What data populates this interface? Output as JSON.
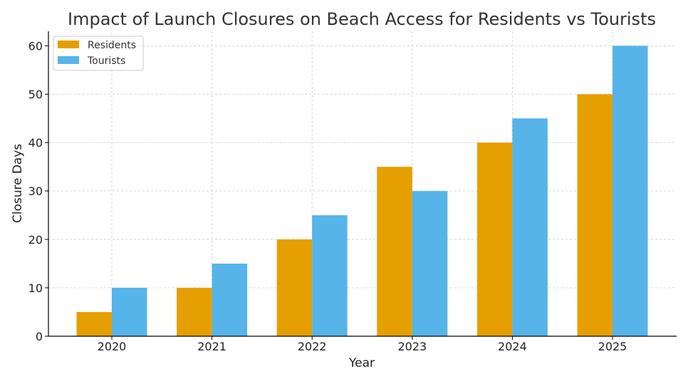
{
  "chart_data": {
    "type": "bar",
    "title": "Impact of Launch Closures on Beach Access for Residents vs Tourists",
    "xlabel": "Year",
    "ylabel": "Closure Days",
    "categories": [
      "2020",
      "2021",
      "2022",
      "2023",
      "2024",
      "2025"
    ],
    "series": [
      {
        "name": "Residents",
        "color": "#E69F00",
        "values": [
          5,
          10,
          20,
          35,
          40,
          50
        ]
      },
      {
        "name": "Tourists",
        "color": "#56B4E9",
        "values": [
          10,
          15,
          25,
          30,
          45,
          60
        ]
      }
    ],
    "ylim": [
      0,
      63
    ],
    "yticks": [
      0,
      10,
      20,
      30,
      40,
      50,
      60
    ],
    "grid": true,
    "legend_position": "top-left"
  }
}
